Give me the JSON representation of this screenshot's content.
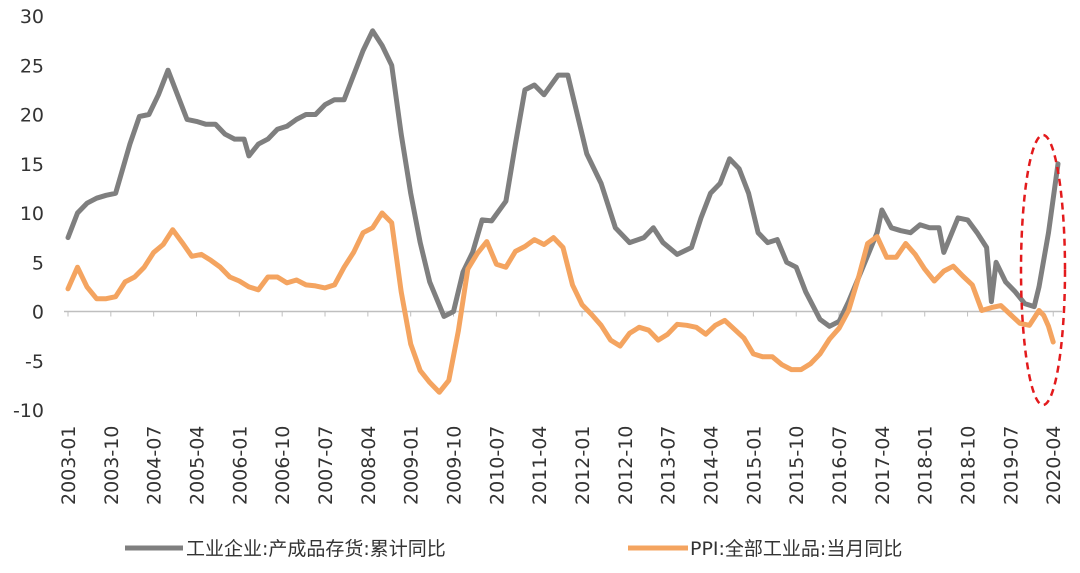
{
  "chart_data": {
    "type": "line",
    "title": "",
    "xlabel": "",
    "ylabel": "",
    "ylim": [
      -10,
      30
    ],
    "yticks": [
      30,
      25,
      20,
      15,
      10,
      5,
      0,
      -5,
      -10
    ],
    "xticks": [
      "2003-01",
      "2003-10",
      "2004-07",
      "2005-04",
      "2006-01",
      "2006-10",
      "2007-07",
      "2008-04",
      "2009-01",
      "2009-10",
      "2010-07",
      "2011-04",
      "2012-01",
      "2012-10",
      "2013-07",
      "2014-04",
      "2015-01",
      "2015-10",
      "2016-07",
      "2017-04",
      "2018-01",
      "2018-10",
      "2019-07",
      "2020-04"
    ],
    "legend_position": "bottom",
    "annotation": "red dashed ellipse highlighting 2019-2020 rebound",
    "series": [
      {
        "name": "工业企业:产成品存货:累计同比",
        "color": "#7f7f7f",
        "points": [
          [
            "2003-01",
            7.5
          ],
          [
            "2003-03",
            10
          ],
          [
            "2003-05",
            11
          ],
          [
            "2003-07",
            11.5
          ],
          [
            "2003-09",
            11.8
          ],
          [
            "2003-11",
            12
          ],
          [
            "2004-02",
            17
          ],
          [
            "2004-04",
            19.8
          ],
          [
            "2004-06",
            20
          ],
          [
            "2004-08",
            22
          ],
          [
            "2004-10",
            24.5
          ],
          [
            "2004-12",
            22
          ],
          [
            "2005-02",
            19.5
          ],
          [
            "2005-04",
            19.3
          ],
          [
            "2005-06",
            19
          ],
          [
            "2005-08",
            19
          ],
          [
            "2005-10",
            18
          ],
          [
            "2005-12",
            17.5
          ],
          [
            "2006-02",
            17.5
          ],
          [
            "2006-03",
            15.8
          ],
          [
            "2006-05",
            17
          ],
          [
            "2006-07",
            17.5
          ],
          [
            "2006-09",
            18.5
          ],
          [
            "2006-11",
            18.8
          ],
          [
            "2007-01",
            19.5
          ],
          [
            "2007-03",
            20
          ],
          [
            "2007-05",
            20
          ],
          [
            "2007-07",
            21
          ],
          [
            "2007-09",
            21.5
          ],
          [
            "2007-11",
            21.5
          ],
          [
            "2008-01",
            24
          ],
          [
            "2008-03",
            26.5
          ],
          [
            "2008-05",
            28.5
          ],
          [
            "2008-07",
            27
          ],
          [
            "2008-09",
            25
          ],
          [
            "2008-11",
            18
          ],
          [
            "2009-01",
            12
          ],
          [
            "2009-03",
            7
          ],
          [
            "2009-05",
            3
          ],
          [
            "2009-08",
            -0.5
          ],
          [
            "2009-10",
            0
          ],
          [
            "2009-12",
            4
          ],
          [
            "2010-02",
            6
          ],
          [
            "2010-04",
            9.3
          ],
          [
            "2010-06",
            9.2
          ],
          [
            "2010-09",
            11.2
          ],
          [
            "2010-11",
            17
          ],
          [
            "2011-01",
            22.5
          ],
          [
            "2011-03",
            23
          ],
          [
            "2011-05",
            22
          ],
          [
            "2011-08",
            24
          ],
          [
            "2011-10",
            24
          ],
          [
            "2011-12",
            20
          ],
          [
            "2012-02",
            16
          ],
          [
            "2012-05",
            13
          ],
          [
            "2012-08",
            8.5
          ],
          [
            "2012-11",
            7
          ],
          [
            "2013-02",
            7.5
          ],
          [
            "2013-04",
            8.5
          ],
          [
            "2013-06",
            7
          ],
          [
            "2013-09",
            5.8
          ],
          [
            "2013-12",
            6.5
          ],
          [
            "2014-02",
            9.5
          ],
          [
            "2014-04",
            12
          ],
          [
            "2014-06",
            13
          ],
          [
            "2014-08",
            15.5
          ],
          [
            "2014-10",
            14.5
          ],
          [
            "2014-12",
            12
          ],
          [
            "2015-02",
            8
          ],
          [
            "2015-04",
            7
          ],
          [
            "2015-06",
            7.3
          ],
          [
            "2015-08",
            5
          ],
          [
            "2015-10",
            4.5
          ],
          [
            "2015-12",
            2
          ],
          [
            "2016-03",
            -0.8
          ],
          [
            "2016-05",
            -1.5
          ],
          [
            "2016-07",
            -1
          ],
          [
            "2016-09",
            1
          ],
          [
            "2016-12",
            4.5
          ],
          [
            "2017-03",
            8
          ],
          [
            "2017-04",
            10.3
          ],
          [
            "2017-06",
            8.5
          ],
          [
            "2017-08",
            8.2
          ],
          [
            "2017-10",
            8
          ],
          [
            "2017-12",
            8.8
          ],
          [
            "2018-02",
            8.5
          ],
          [
            "2018-04",
            8.5
          ],
          [
            "2018-05",
            6
          ],
          [
            "2018-08",
            9.5
          ],
          [
            "2018-10",
            9.3
          ],
          [
            "2018-12",
            8
          ],
          [
            "2019-02",
            6.5
          ],
          [
            "2019-03",
            1
          ],
          [
            "2019-04",
            5
          ],
          [
            "2019-06",
            3
          ],
          [
            "2019-08",
            2
          ],
          [
            "2019-10",
            0.8
          ],
          [
            "2019-12",
            0.5
          ],
          [
            "2020-01",
            2.5
          ],
          [
            "2020-03",
            8
          ],
          [
            "2020-05",
            15
          ]
        ]
      },
      {
        "name": "PPI:全部工业品:当月同比",
        "color": "#f4a460",
        "points": [
          [
            "2003-01",
            2.3
          ],
          [
            "2003-03",
            4.5
          ],
          [
            "2003-05",
            2.5
          ],
          [
            "2003-07",
            1.3
          ],
          [
            "2003-09",
            1.3
          ],
          [
            "2003-11",
            1.5
          ],
          [
            "2004-01",
            3
          ],
          [
            "2004-03",
            3.5
          ],
          [
            "2004-05",
            4.5
          ],
          [
            "2004-07",
            6
          ],
          [
            "2004-09",
            6.8
          ],
          [
            "2004-11",
            8.3
          ],
          [
            "2005-01",
            7
          ],
          [
            "2005-03",
            5.6
          ],
          [
            "2005-05",
            5.8
          ],
          [
            "2005-07",
            5.2
          ],
          [
            "2005-09",
            4.5
          ],
          [
            "2005-11",
            3.5
          ],
          [
            "2006-01",
            3.1
          ],
          [
            "2006-03",
            2.5
          ],
          [
            "2006-05",
            2.2
          ],
          [
            "2006-07",
            3.5
          ],
          [
            "2006-09",
            3.5
          ],
          [
            "2006-11",
            2.9
          ],
          [
            "2007-01",
            3.2
          ],
          [
            "2007-03",
            2.7
          ],
          [
            "2007-05",
            2.6
          ],
          [
            "2007-07",
            2.4
          ],
          [
            "2007-09",
            2.7
          ],
          [
            "2007-11",
            4.5
          ],
          [
            "2008-01",
            6
          ],
          [
            "2008-03",
            8
          ],
          [
            "2008-05",
            8.5
          ],
          [
            "2008-07",
            10
          ],
          [
            "2008-09",
            9
          ],
          [
            "2008-11",
            2
          ],
          [
            "2009-01",
            -3.3
          ],
          [
            "2009-03",
            -6
          ],
          [
            "2009-05",
            -7.2
          ],
          [
            "2009-07",
            -8.2
          ],
          [
            "2009-09",
            -7
          ],
          [
            "2009-11",
            -2
          ],
          [
            "2010-01",
            4.3
          ],
          [
            "2010-03",
            5.9
          ],
          [
            "2010-05",
            7.1
          ],
          [
            "2010-07",
            4.8
          ],
          [
            "2010-09",
            4.5
          ],
          [
            "2010-11",
            6.1
          ],
          [
            "2011-01",
            6.6
          ],
          [
            "2011-03",
            7.3
          ],
          [
            "2011-05",
            6.8
          ],
          [
            "2011-07",
            7.5
          ],
          [
            "2011-09",
            6.5
          ],
          [
            "2011-11",
            2.7
          ],
          [
            "2012-01",
            0.7
          ],
          [
            "2012-03",
            -0.3
          ],
          [
            "2012-05",
            -1.4
          ],
          [
            "2012-07",
            -2.9
          ],
          [
            "2012-09",
            -3.5
          ],
          [
            "2012-11",
            -2.2
          ],
          [
            "2013-01",
            -1.6
          ],
          [
            "2013-03",
            -1.9
          ],
          [
            "2013-05",
            -2.9
          ],
          [
            "2013-07",
            -2.3
          ],
          [
            "2013-09",
            -1.3
          ],
          [
            "2013-11",
            -1.4
          ],
          [
            "2014-01",
            -1.6
          ],
          [
            "2014-03",
            -2.3
          ],
          [
            "2014-05",
            -1.4
          ],
          [
            "2014-07",
            -0.9
          ],
          [
            "2014-09",
            -1.8
          ],
          [
            "2014-11",
            -2.7
          ],
          [
            "2015-01",
            -4.3
          ],
          [
            "2015-03",
            -4.6
          ],
          [
            "2015-05",
            -4.6
          ],
          [
            "2015-07",
            -5.4
          ],
          [
            "2015-09",
            -5.9
          ],
          [
            "2015-11",
            -5.9
          ],
          [
            "2016-01",
            -5.3
          ],
          [
            "2016-03",
            -4.3
          ],
          [
            "2016-05",
            -2.8
          ],
          [
            "2016-07",
            -1.7
          ],
          [
            "2016-09",
            0.1
          ],
          [
            "2016-11",
            3.3
          ],
          [
            "2017-01",
            6.9
          ],
          [
            "2017-03",
            7.6
          ],
          [
            "2017-05",
            5.5
          ],
          [
            "2017-07",
            5.5
          ],
          [
            "2017-09",
            6.9
          ],
          [
            "2017-11",
            5.8
          ],
          [
            "2018-01",
            4.3
          ],
          [
            "2018-03",
            3.1
          ],
          [
            "2018-05",
            4.1
          ],
          [
            "2018-07",
            4.6
          ],
          [
            "2018-09",
            3.6
          ],
          [
            "2018-11",
            2.7
          ],
          [
            "2019-01",
            0.1
          ],
          [
            "2019-03",
            0.4
          ],
          [
            "2019-05",
            0.6
          ],
          [
            "2019-07",
            -0.3
          ],
          [
            "2019-09",
            -1.2
          ],
          [
            "2019-11",
            -1.4
          ],
          [
            "2020-01",
            0.1
          ],
          [
            "2020-02",
            -0.4
          ],
          [
            "2020-03",
            -1.5
          ],
          [
            "2020-04",
            -3.1
          ]
        ]
      }
    ]
  }
}
